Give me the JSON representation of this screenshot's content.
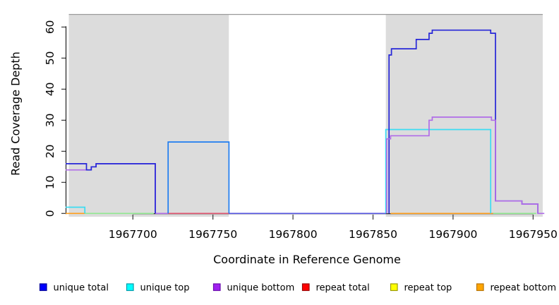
{
  "chart_data": {
    "type": "line",
    "subtype": "step-coverage",
    "title": "",
    "xlabel": "Coordinate in Reference Genome",
    "ylabel": "Read Coverage Depth",
    "xlim": [
      1967658,
      1967960
    ],
    "ylim": [
      0,
      64
    ],
    "xticks": [
      1967700,
      1967750,
      1967800,
      1967850,
      1967900,
      1967950
    ],
    "yticks": [
      0,
      10,
      20,
      30,
      40,
      50,
      60
    ],
    "grid": false,
    "legend_position": "bottom",
    "background_regions": [
      {
        "name": "left-shaded-region",
        "x0": 1967660,
        "x1": 1967760,
        "fill": "#dcdcdc"
      },
      {
        "name": "middle-white-gap",
        "x0": 1967760,
        "x1": 1967858,
        "fill": "#ffffff"
      },
      {
        "name": "right-shaded-region",
        "x0": 1967858,
        "x1": 1967956,
        "fill": "#dcdcdc"
      }
    ],
    "region_top_border_color": "#999999",
    "series": [
      {
        "name": "repeat-bottom-left",
        "legend": "repeat bottom",
        "color": "#ff9e1b",
        "points": [
          [
            1967658,
            0
          ],
          [
            1967670,
            0
          ]
        ]
      },
      {
        "name": "overlap-zero-left",
        "legend": null,
        "color": "#90e890",
        "points": [
          [
            1967670,
            0
          ],
          [
            1967713,
            0
          ]
        ]
      },
      {
        "name": "repeat-total-mid",
        "legend": "repeat total",
        "color": "#e05570",
        "points": [
          [
            1967722,
            0
          ],
          [
            1967760,
            0
          ]
        ]
      },
      {
        "name": "unique-bottom-gap-zero",
        "legend": "unique bottom",
        "color": "#b06ce8",
        "points": [
          [
            1967714,
            0
          ],
          [
            1967722,
            0
          ]
        ]
      },
      {
        "name": "unique-top-left",
        "legend": "unique top",
        "color": "#3bdcf2",
        "points": [
          [
            1967658,
            2
          ],
          [
            1967670,
            2
          ],
          [
            1967670,
            0
          ]
        ]
      },
      {
        "name": "unique-bottom-left",
        "legend": "unique bottom",
        "color": "#b06ce8",
        "points": [
          [
            1967658,
            14
          ],
          [
            1967674,
            14
          ],
          [
            1967674,
            15
          ],
          [
            1967677,
            15
          ],
          [
            1967677,
            16
          ],
          [
            1967714,
            16
          ],
          [
            1967714,
            0
          ]
        ]
      },
      {
        "name": "unique-total-left",
        "legend": "unique total",
        "color": "#2626d8",
        "points": [
          [
            1967658,
            16
          ],
          [
            1967671,
            16
          ],
          [
            1967671,
            14
          ],
          [
            1967674,
            14
          ],
          [
            1967674,
            15
          ],
          [
            1967677,
            15
          ],
          [
            1967677,
            16
          ],
          [
            1967714,
            16
          ],
          [
            1967714,
            0
          ]
        ]
      },
      {
        "name": "unique-total-box",
        "legend": "unique total",
        "color": "#1e7cf0",
        "points": [
          [
            1967722,
            0
          ],
          [
            1967722,
            23
          ],
          [
            1967760,
            23
          ],
          [
            1967760,
            0
          ]
        ]
      },
      {
        "name": "zero-line-white-gap",
        "legend": null,
        "color": "#5656e2",
        "points": [
          [
            1967760,
            0
          ],
          [
            1967858,
            0
          ]
        ]
      },
      {
        "name": "repeat-bottom-right",
        "legend": "repeat bottom",
        "color": "#ff9e1b",
        "points": [
          [
            1967861,
            0
          ],
          [
            1967925,
            0
          ]
        ]
      },
      {
        "name": "overlap-zero-right",
        "legend": null,
        "color": "#90e890",
        "points": [
          [
            1967925,
            0
          ],
          [
            1967952,
            0
          ]
        ]
      },
      {
        "name": "unique-top-right",
        "legend": "unique top",
        "color": "#3bdcf2",
        "points": [
          [
            1967858,
            0
          ],
          [
            1967858,
            27
          ],
          [
            1967923.5,
            27
          ],
          [
            1967923.5,
            0
          ]
        ]
      },
      {
        "name": "unique-total-right",
        "legend": "unique total",
        "color": "#2626d8",
        "points": [
          [
            1967860,
            0
          ],
          [
            1967860,
            51
          ],
          [
            1967861.5,
            51
          ],
          [
            1967861.5,
            53
          ],
          [
            1967877,
            53
          ],
          [
            1967877,
            56
          ],
          [
            1967885,
            56
          ],
          [
            1967885,
            58
          ],
          [
            1967887,
            58
          ],
          [
            1967887,
            59
          ],
          [
            1967923.5,
            59
          ],
          [
            1967923.5,
            58
          ],
          [
            1967926.5,
            58
          ],
          [
            1967926.5,
            4
          ],
          [
            1967943,
            4
          ],
          [
            1967943,
            3
          ],
          [
            1967953,
            3
          ],
          [
            1967953,
            0
          ]
        ]
      },
      {
        "name": "unique-bottom-right",
        "legend": "unique bottom",
        "color": "#b06ce8",
        "points": [
          [
            1967858.5,
            0
          ],
          [
            1967858.5,
            24
          ],
          [
            1967861,
            24
          ],
          [
            1967861,
            25
          ],
          [
            1967885,
            25
          ],
          [
            1967885,
            30
          ],
          [
            1967887,
            30
          ],
          [
            1967887,
            31
          ],
          [
            1967924,
            31
          ],
          [
            1967924,
            30
          ],
          [
            1967926.5,
            30
          ],
          [
            1967926.5,
            4
          ],
          [
            1967943,
            4
          ],
          [
            1967943,
            3
          ],
          [
            1967953,
            3
          ],
          [
            1967953,
            0
          ],
          [
            1967957,
            0
          ]
        ]
      }
    ],
    "legend": [
      {
        "label": "unique total",
        "fill": "#0000ff",
        "border": "#00009b"
      },
      {
        "label": "unique top",
        "fill": "#00ffff",
        "border": "#009bab"
      },
      {
        "label": "unique bottom",
        "fill": "#a020f0",
        "border": "#6a0dad"
      },
      {
        "label": "repeat total",
        "fill": "#ff0000",
        "border": "#9b0000"
      },
      {
        "label": "repeat top",
        "fill": "#ffff00",
        "border": "#9b9b00"
      },
      {
        "label": "repeat bottom",
        "fill": "#ffa500",
        "border": "#b87300"
      }
    ]
  }
}
